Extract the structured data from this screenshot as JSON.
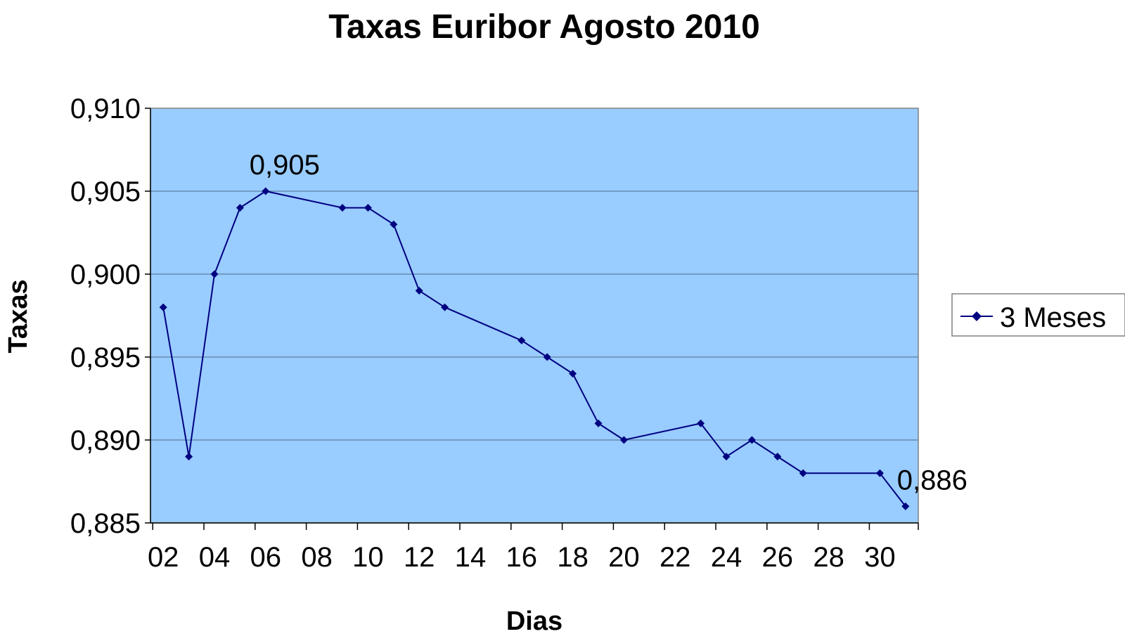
{
  "chart_data": {
    "type": "line",
    "title": "Taxas Euribor Agosto 2010",
    "xlabel": "Dias",
    "ylabel": "Taxas",
    "x_ticks": [
      "02",
      "04",
      "06",
      "08",
      "10",
      "12",
      "14",
      "16",
      "18",
      "20",
      "22",
      "24",
      "26",
      "28",
      "30"
    ],
    "xlim": [
      1.5,
      31.5
    ],
    "ylim": [
      0.885,
      0.91
    ],
    "y_ticks": [
      "0,885",
      "0,890",
      "0,895",
      "0,900",
      "0,905",
      "0,910"
    ],
    "grid": "horizontal",
    "legend_position": "right",
    "series": [
      {
        "name": "3 Meses",
        "color": "#000080",
        "points": [
          {
            "x": 2,
            "y": 0.898
          },
          {
            "x": 3,
            "y": 0.889
          },
          {
            "x": 4,
            "y": 0.9
          },
          {
            "x": 5,
            "y": 0.904
          },
          {
            "x": 6,
            "y": 0.905
          },
          {
            "x": 9,
            "y": 0.904
          },
          {
            "x": 10,
            "y": 0.904
          },
          {
            "x": 11,
            "y": 0.903
          },
          {
            "x": 12,
            "y": 0.899
          },
          {
            "x": 13,
            "y": 0.898
          },
          {
            "x": 16,
            "y": 0.896
          },
          {
            "x": 17,
            "y": 0.895
          },
          {
            "x": 18,
            "y": 0.894
          },
          {
            "x": 19,
            "y": 0.891
          },
          {
            "x": 20,
            "y": 0.89
          },
          {
            "x": 23,
            "y": 0.891
          },
          {
            "x": 24,
            "y": 0.889
          },
          {
            "x": 25,
            "y": 0.89
          },
          {
            "x": 26,
            "y": 0.889
          },
          {
            "x": 27,
            "y": 0.888
          },
          {
            "x": 30,
            "y": 0.888
          },
          {
            "x": 31,
            "y": 0.886
          }
        ]
      }
    ],
    "data_labels": [
      {
        "x": 6,
        "y": 0.905,
        "text": "0,905"
      },
      {
        "x": 31,
        "y": 0.886,
        "text": "0,886"
      }
    ],
    "colors": {
      "plot_background": "#99CCFF",
      "gridline": "#4a6a8a",
      "series": "#000080"
    }
  }
}
